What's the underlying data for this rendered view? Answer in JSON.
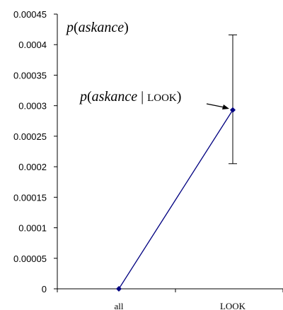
{
  "chart_data": {
    "type": "line",
    "categories": [
      "all",
      "LOOK"
    ],
    "series": [
      {
        "values": [
          0,
          0.000293
        ],
        "error_low": [
          0,
          0.000205
        ],
        "error_high": [
          0,
          0.000416
        ],
        "color": "#000080"
      }
    ],
    "ylim": [
      0,
      0.00045
    ],
    "yticks": [
      "0",
      "0.00005",
      "0.0001",
      "0.00015",
      "0.0002",
      "0.00025",
      "0.0003",
      "0.00035",
      "0.0004",
      "0.00045"
    ],
    "yticks_values": [
      0,
      5e-05,
      0.0001,
      0.00015,
      0.0002,
      0.00025,
      0.0003,
      0.00035,
      0.0004,
      0.00045
    ],
    "grid": false,
    "annotations": {
      "top": {
        "p": "p",
        "open": "(",
        "word": "askance",
        "close": ")"
      },
      "point": {
        "p": "p",
        "open": "(",
        "word": "askance",
        "bar": " | ",
        "cond": "LOOK",
        "close": ")"
      }
    }
  }
}
